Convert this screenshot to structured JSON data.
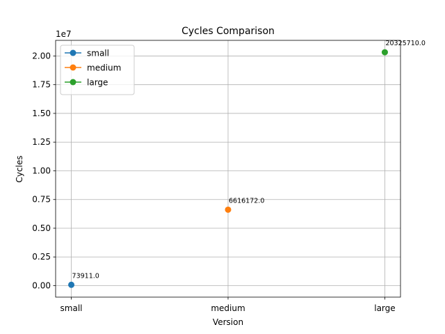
{
  "chart_data": {
    "type": "line",
    "title": "Cycles Comparison",
    "xlabel": "Version",
    "ylabel": "Cycles",
    "categories": [
      "small",
      "medium",
      "large"
    ],
    "y_scale_label": "1e7",
    "ylim": [
      -1000000,
      21360000
    ],
    "y_ticks": [
      0,
      2500000,
      5000000,
      7500000,
      10000000,
      12500000,
      15000000,
      17500000,
      20000000
    ],
    "y_tick_labels": [
      "0.00",
      "0.25",
      "0.50",
      "0.75",
      "1.00",
      "1.25",
      "1.50",
      "1.75",
      "2.00"
    ],
    "grid": true,
    "legend_position": "upper-left",
    "series": [
      {
        "name": "small",
        "color": "#1f77b4",
        "x_index": 0,
        "value": 73911.0,
        "label": "73911.0"
      },
      {
        "name": "medium",
        "color": "#ff7f0e",
        "x_index": 1,
        "value": 6616172.0,
        "label": "6616172.0"
      },
      {
        "name": "large",
        "color": "#2ca02c",
        "x_index": 2,
        "value": 20325710.0,
        "label": "20325710.0"
      }
    ]
  }
}
